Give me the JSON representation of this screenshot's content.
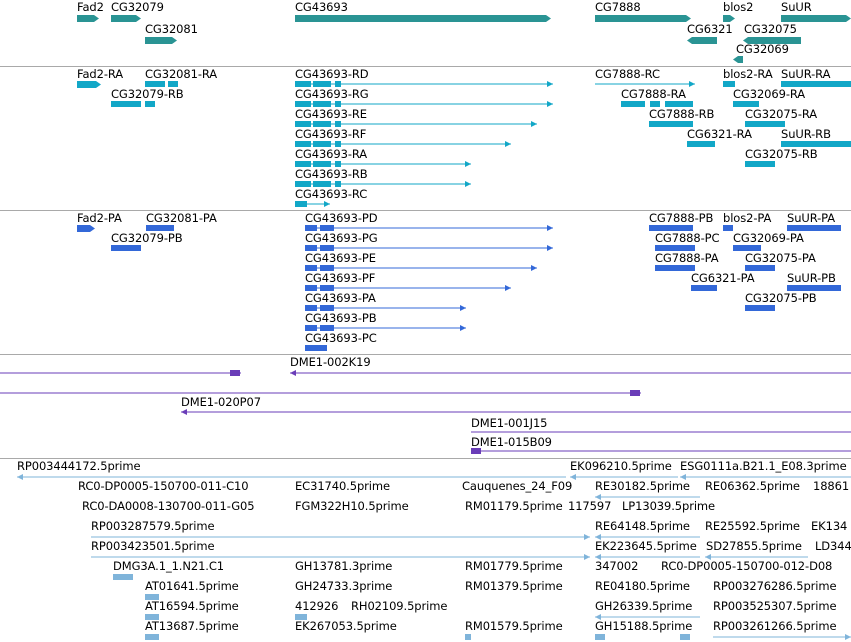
{
  "colors": {
    "gene": "#2a9494",
    "transcript_rna": "#12a7c7",
    "protein": "#3368d8",
    "clone": "#6a3db8",
    "est": "#7fb4da",
    "separator": "#a9a9a9",
    "background": "#ffffff"
  },
  "tracks": {
    "genes": {
      "labels": [
        "Fad2",
        "CG32079",
        "CG32081",
        "CG43693",
        "CG7888",
        "blos2",
        "SuUR",
        "CG6321",
        "CG32075",
        "CG32069"
      ]
    },
    "transcripts": {
      "labels": [
        "Fad2-RA",
        "CG32081-RA",
        "CG32079-RB",
        "CG43693-RD",
        "CG43693-RG",
        "CG43693-RE",
        "CG43693-RF",
        "CG43693-RA",
        "CG43693-RB",
        "CG43693-RC",
        "CG7888-RC",
        "blos2-RA",
        "SuUR-RA",
        "CG7888-RA",
        "CG32069-RA",
        "CG7888-RB",
        "CG32075-RA",
        "CG6321-RA",
        "SuUR-RB",
        "CG32075-RB"
      ]
    },
    "proteins": {
      "labels": [
        "Fad2-PA",
        "CG32081-PA",
        "CG32079-PB",
        "CG43693-PD",
        "CG43693-PG",
        "CG43693-PE",
        "CG43693-PF",
        "CG43693-PA",
        "CG43693-PB",
        "CG43693-PC",
        "CG7888-PB",
        "blos2-PA",
        "SuUR-PA",
        "CG7888-PC",
        "CG32069-PA",
        "CG7888-PA",
        "CG32075-PA",
        "CG6321-PA",
        "SuUR-PB",
        "CG32075-PB"
      ]
    },
    "clones": {
      "labels": [
        "DME1-002K19",
        "DME1-020P07",
        "DME1-001J15",
        "DME1-015B09"
      ]
    },
    "ests": {
      "labels": [
        "RP003444172.5prime",
        "EK096210.5prime",
        "ESG0111a.B21.1_E08.3prime",
        "RC0-DP0005-150700-011-C10",
        "EC31740.5prime",
        "Cauquenes_24_F09",
        "RE30182.5prime",
        "RE06362.5prime",
        "18861",
        "RC0-DA0008-130700-011-G05",
        "FGM322H10.5prime",
        "RM01179.5prime",
        "117597",
        "LP13039.5prime",
        "RP003287579.5prime",
        "RE64148.5prime",
        "RE25592.5prime",
        "EK134",
        "RP003423501.5prime",
        "EK223645.5prime",
        "SD27855.5prime",
        "LD344",
        "DMG3A.1_1.N21.C1",
        "GH13781.3prime",
        "RM01779.5prime",
        "347002",
        "RC0-DP0005-150700-012-D08",
        "AT01641.5prime",
        "GH24733.3prime",
        "RM01379.5prime",
        "RE04180.5prime",
        "RP003276286.5prime",
        "AT16594.5prime",
        "412926",
        "RH02109.5prime",
        "GH26339.5prime",
        "RP003525307.5prime",
        "AT13687.5prime",
        "EK267053.5prime",
        "RM01579.5prime",
        "GH15188.5prime",
        "RP003261266.5prime"
      ]
    }
  }
}
